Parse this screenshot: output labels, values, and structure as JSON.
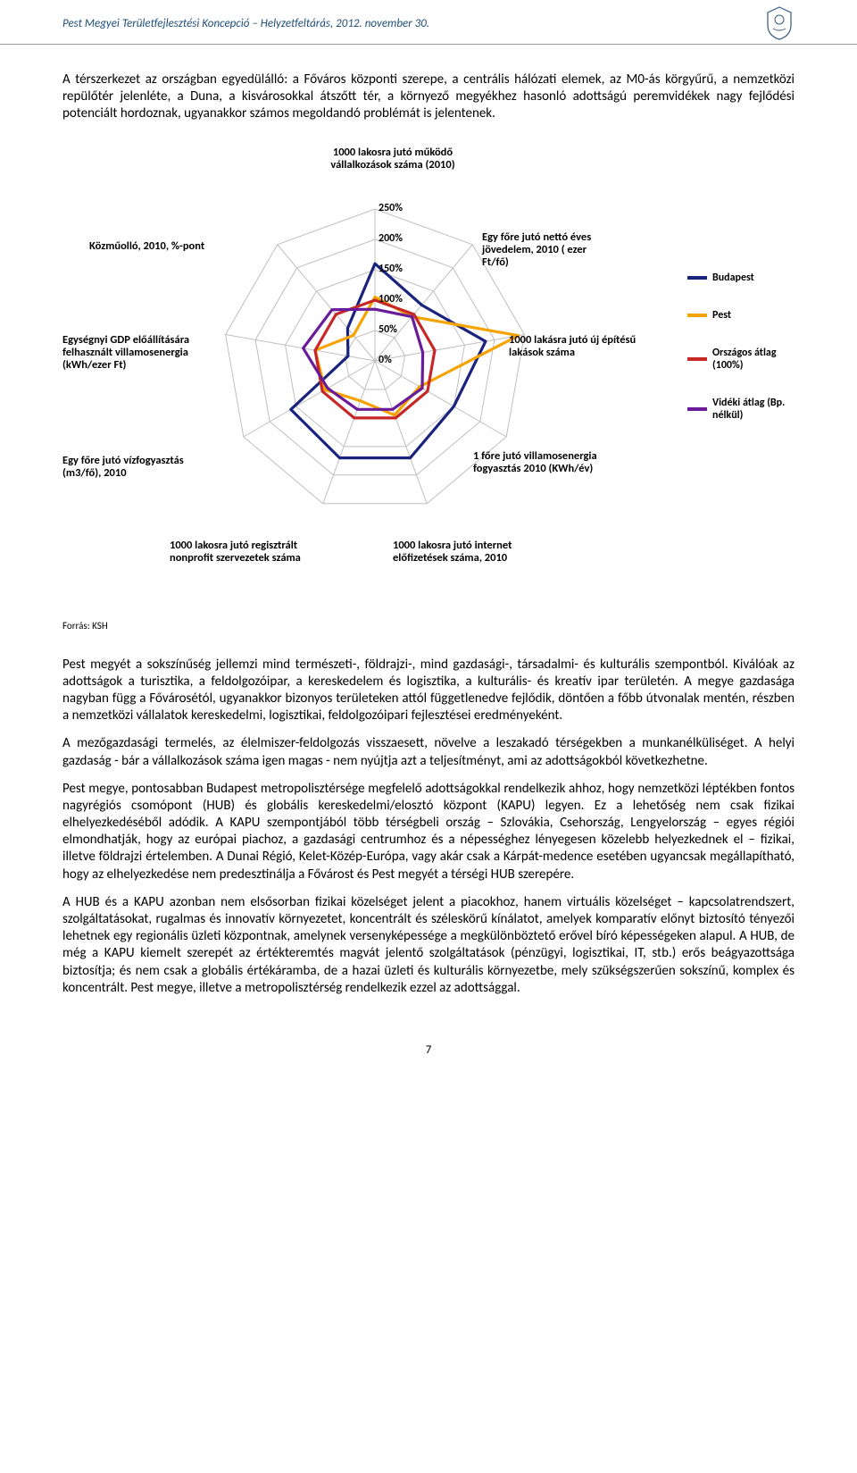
{
  "header": {
    "text": "Pest Megyei Területfejlesztési Koncepció – Helyzetfeltárás, 2012. november 30."
  },
  "paragraphs": {
    "p1": "A térszerkezet az országban egyedülálló: a Főváros központi szerepe, a centrális hálózati elemek, az M0-ás körgyűrű, a nemzetközi repülőtér jelenléte, a Duna, a kisvárosokkal átszőtt tér, a környező megyékhez hasonló adottságú peremvidékek nagy fejlődési potenciált hordoznak, ugyanakkor számos megoldandó problémát is jelentenek.",
    "p2": "Pest megyét a sokszínűség jellemzi mind természeti-, földrajzi-, mind gazdasági-, társadalmi- és kulturális szempontból. Kiválóak az adottságok a turisztika, a feldolgozóipar, a kereskedelem és logisztika, a kulturális- és kreatív ipar területén. A megye gazdasága nagyban függ a Fővárosétól, ugyanakkor bizonyos területeken attól függetlenedve fejlődik, döntően a főbb útvonalak mentén, részben a nemzetközi vállalatok kereskedelmi, logisztikai, feldolgozóipari fejlesztései eredményeként.",
    "p3": "A mezőgazdasági termelés, az élelmiszer-feldolgozás visszaesett, növelve a leszakadó térségekben a munkanélküliséget. A helyi gazdaság - bár a vállalkozások száma igen magas - nem nyújtja azt a teljesítményt, ami az adottságokból következhetne.",
    "p4": "Pest megye, pontosabban Budapest metropolisztérsége megfelelő adottságokkal rendelkezik ahhoz, hogy nemzetközi léptékben fontos nagyrégiós csomópont (HUB) és globális kereskedelmi/elosztó központ (KAPU) legyen. Ez a lehetőség nem csak fizikai elhelyezkedéséből adódik. A KAPU szempontjából több térségbeli ország – Szlovákia, Csehország, Lengyelország – egyes régiói elmondhatják, hogy az európai piachoz, a gazdasági centrumhoz és a népességhez lényegesen közelebb helyezkednek el – fizikai, illetve földrajzi értelemben. A Dunai Régió, Kelet-Közép-Európa, vagy akár csak a Kárpát-medence esetében ugyancsak megállapítható, hogy az elhelyezkedése nem predesztinálja a Fővárost és Pest megyét a térségi HUB szerepére.",
    "p5": "A HUB és a KAPU azonban nem elsősorban fizikai közelséget jelent a piacokhoz, hanem virtuális közelséget – kapcsolatrendszert, szolgáltatásokat, rugalmas és innovatív környezetet, koncentrált és széleskörű kínálatot, amelyek komparatív előnyt biztosító tényezői lehetnek egy regionális üzleti központnak, amelynek versenyképessége a megkülönböztető erővel bíró képességeken alapul. A HUB, de még a KAPU kiemelt szerepét az értékteremtés magvát jelentő szolgáltatások (pénzügyi, logisztikai, IT, stb.) erős beágyazottsága biztosítja; és nem csak a globális értékáramba, de a hazai üzleti és kulturális környezetbe, mely szükségszerűen sokszínű, komplex és koncentrált. Pest megye, illetve a metropolisztérség rendelkezik ezzel az adottsággal."
  },
  "chart": {
    "type": "radar",
    "rings": [
      "0%",
      "50%",
      "100%",
      "150%",
      "200%",
      "250%"
    ],
    "ring_color": "#bfbfbf",
    "background_color": "#ffffff",
    "axis_label_fontsize": 12.5,
    "axes": [
      {
        "label": "1000 lakosra jutó működő\nvállalkozások száma (2010)"
      },
      {
        "label": "Egy főre jutó nettó éves\njövedelem, 2010 ( ezer\nFt/fő)"
      },
      {
        "label": "1000 lakásra jutó új építésű\nlakások száma"
      },
      {
        "label": "1 főre jutó villamosenergia\nfogyasztás 2010 (KWh/év)"
      },
      {
        "label": "1000 lakosra jutó internet\nelőfizetések száma, 2010"
      },
      {
        "label": "1000 lakosra jutó regisztrált\nnonprofit szervezetek száma"
      },
      {
        "label": "Egy főre jutó vízfogyasztás\n(m3/fő), 2010"
      },
      {
        "label": "Egységnyi GDP előállítására\nfelhasznált villamosenergia\n(kWh/ezer Ft)"
      },
      {
        "label": "Közműolló, 2010, %-pont"
      }
    ],
    "series": [
      {
        "name": "Budapest",
        "color": "#1a237e",
        "values": [
          160,
          120,
          185,
          150,
          170,
          170,
          160,
          45,
          70
        ]
      },
      {
        "name": "Pest",
        "color": "#f5a300",
        "values": [
          105,
          95,
          240,
          85,
          95,
          70,
          95,
          100,
          55
        ]
      },
      {
        "name": "Országos átlag (100%)",
        "color": "#c62828",
        "values": [
          100,
          100,
          100,
          100,
          100,
          100,
          100,
          100,
          100
        ]
      },
      {
        "name": "Vidéki átlag (Bp. nélkül)",
        "color": "#6a1b9a",
        "values": [
          85,
          95,
          80,
          90,
          85,
          85,
          90,
          120,
          110
        ]
      }
    ],
    "line_width": 3.2
  },
  "source": "Forrás: KSH",
  "page_number": "7"
}
